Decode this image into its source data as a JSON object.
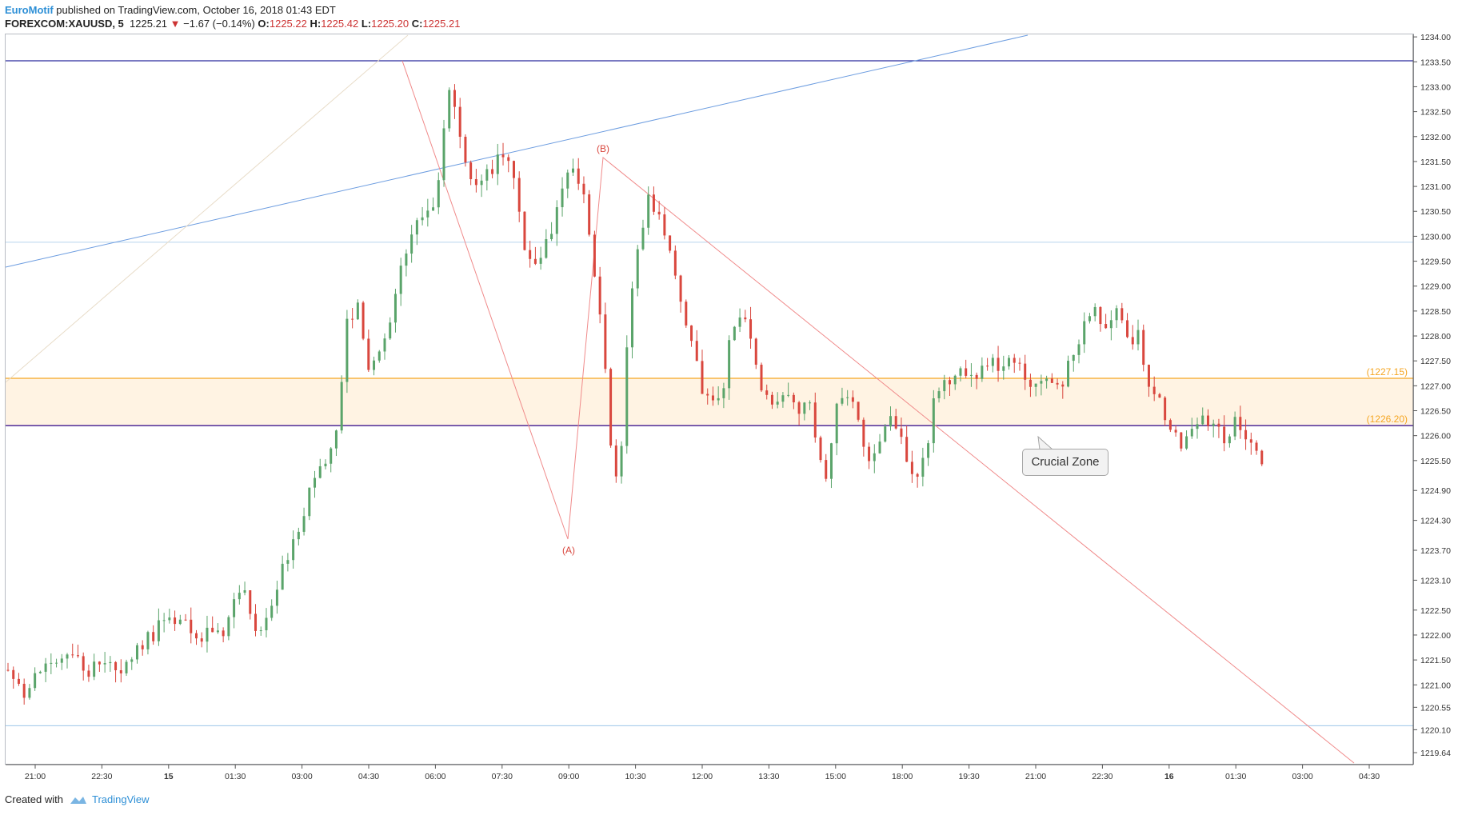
{
  "header": {
    "author": "EuroMotif",
    "published": "published on TradingView.com, October 16, 2018 01:43 EDT",
    "symbol": "FOREXCOM:XAUUSD, 5",
    "last": "1225.21",
    "change": "−1.67 (−0.14%)",
    "o_label": "O:",
    "o": "1225.22",
    "h_label": "H:",
    "h": "1225.42",
    "l_label": "L:",
    "l": "1225.20",
    "c_label": "C:",
    "c": "1225.21"
  },
  "footer": {
    "created": "Created with",
    "brand": "TradingView"
  },
  "colors": {
    "up": "#5aa46a",
    "down": "#d9473e",
    "zone_fill": "#fff3e3",
    "zone_line": "#f5a623",
    "navy": "#2a2a9e",
    "purple": "#5c3a9e",
    "trend": "#6d9de0",
    "wave": "#f08b8b",
    "axis": "#555555"
  },
  "chart_data": {
    "type": "candlestick",
    "title": "",
    "ylim": [
      1219.4,
      1234.05
    ],
    "y_ticks": [
      "1234.00",
      "1233.50",
      "1233.00",
      "1232.50",
      "1232.00",
      "1231.50",
      "1231.00",
      "1230.50",
      "1230.00",
      "1229.50",
      "1229.00",
      "1228.50",
      "1228.00",
      "1227.50",
      "1227.00",
      "1226.50",
      "1226.00",
      "1225.50",
      "1224.90",
      "1224.30",
      "1223.70",
      "1223.10",
      "1222.50",
      "1222.00",
      "1221.50",
      "1221.00",
      "1220.55",
      "1220.10",
      "1219.64"
    ],
    "x_ticks": [
      "21:00",
      "22:30",
      "15",
      "01:30",
      "03:00",
      "04:30",
      "06:00",
      "07:30",
      "09:00",
      "10:30",
      "12:00",
      "13:30",
      "15:00",
      "18:00",
      "19:30",
      "21:00",
      "22:30",
      "16",
      "01:30",
      "03:00",
      "04:30"
    ],
    "zone": {
      "top": 1227.15,
      "bottom": 1226.2,
      "top_label": "(1227.15)",
      "bottom_label": "(1226.20)"
    },
    "horizontal_lines": [
      1233.52,
      1229.88,
      1220.18
    ],
    "wave_labels": {
      "a": "(A)",
      "b": "(B)"
    },
    "callout": "Crucial Zone",
    "close_path": [
      [
        0,
        1221.3
      ],
      [
        10,
        1220.8
      ],
      [
        20,
        1221.4
      ],
      [
        30,
        1221.7
      ],
      [
        45,
        1221.3
      ],
      [
        55,
        1221.6
      ],
      [
        62,
        1221.2
      ],
      [
        70,
        1221.6
      ],
      [
        85,
        1222.2
      ],
      [
        95,
        1222.3
      ],
      [
        105,
        1222.0
      ],
      [
        112,
        1222.1
      ],
      [
        118,
        1221.9
      ],
      [
        124,
        1222.6
      ],
      [
        130,
        1223.0
      ],
      [
        136,
        1222.4
      ],
      [
        140,
        1222.1
      ],
      [
        150,
        1223.0
      ],
      [
        160,
        1224.0
      ],
      [
        170,
        1225.0
      ],
      [
        180,
        1225.8
      ],
      [
        185,
        1226.3
      ],
      [
        188,
        1228.2
      ],
      [
        195,
        1228.5
      ],
      [
        200,
        1227.4
      ],
      [
        210,
        1228.0
      ],
      [
        220,
        1229.4
      ],
      [
        228,
        1230.3
      ],
      [
        236,
        1230.6
      ],
      [
        240,
        1231.2
      ],
      [
        246,
        1233.1
      ],
      [
        250,
        1232.2
      ],
      [
        256,
        1231.4
      ],
      [
        262,
        1230.9
      ],
      [
        268,
        1231.3
      ],
      [
        276,
        1231.6
      ],
      [
        282,
        1231.1
      ],
      [
        288,
        1229.6
      ],
      [
        294,
        1229.3
      ],
      [
        300,
        1229.8
      ],
      [
        308,
        1230.7
      ],
      [
        314,
        1231.5
      ],
      [
        320,
        1230.9
      ],
      [
        324,
        1230.2
      ],
      [
        330,
        1228.4
      ],
      [
        334,
        1227.0
      ],
      [
        338,
        1224.9
      ],
      [
        342,
        1225.8
      ],
      [
        346,
        1228.3
      ],
      [
        350,
        1229.4
      ],
      [
        356,
        1230.8
      ],
      [
        362,
        1230.5
      ],
      [
        368,
        1229.9
      ],
      [
        374,
        1229.0
      ],
      [
        380,
        1228.0
      ],
      [
        386,
        1227.0
      ],
      [
        392,
        1226.6
      ],
      [
        398,
        1226.9
      ],
      [
        404,
        1228.2
      ],
      [
        410,
        1228.5
      ],
      [
        416,
        1227.5
      ],
      [
        422,
        1226.8
      ],
      [
        428,
        1226.6
      ],
      [
        434,
        1226.9
      ],
      [
        440,
        1226.5
      ],
      [
        446,
        1226.7
      ],
      [
        452,
        1225.6
      ],
      [
        456,
        1225.2
      ],
      [
        462,
        1226.8
      ],
      [
        468,
        1226.7
      ],
      [
        474,
        1226.4
      ],
      [
        480,
        1225.4
      ],
      [
        486,
        1226.0
      ],
      [
        492,
        1226.4
      ],
      [
        498,
        1225.9
      ],
      [
        504,
        1225.1
      ],
      [
        510,
        1225.4
      ],
      [
        516,
        1226.6
      ],
      [
        522,
        1227.0
      ],
      [
        530,
        1227.2
      ],
      [
        540,
        1227.3
      ],
      [
        550,
        1227.4
      ],
      [
        560,
        1227.6
      ],
      [
        566,
        1227.2
      ],
      [
        572,
        1227.1
      ],
      [
        580,
        1227.3
      ],
      [
        586,
        1226.8
      ],
      [
        592,
        1227.6
      ],
      [
        598,
        1228.0
      ],
      [
        606,
        1228.5
      ],
      [
        612,
        1228.2
      ],
      [
        618,
        1228.4
      ],
      [
        624,
        1228.0
      ],
      [
        630,
        1228.0
      ],
      [
        636,
        1227.1
      ],
      [
        642,
        1226.8
      ],
      [
        648,
        1226.1
      ],
      [
        654,
        1225.7
      ],
      [
        660,
        1226.1
      ],
      [
        666,
        1226.4
      ],
      [
        672,
        1226.3
      ],
      [
        678,
        1226.0
      ],
      [
        684,
        1226.3
      ],
      [
        690,
        1226.0
      ],
      [
        696,
        1225.6
      ],
      [
        700,
        1225.2
      ]
    ]
  }
}
